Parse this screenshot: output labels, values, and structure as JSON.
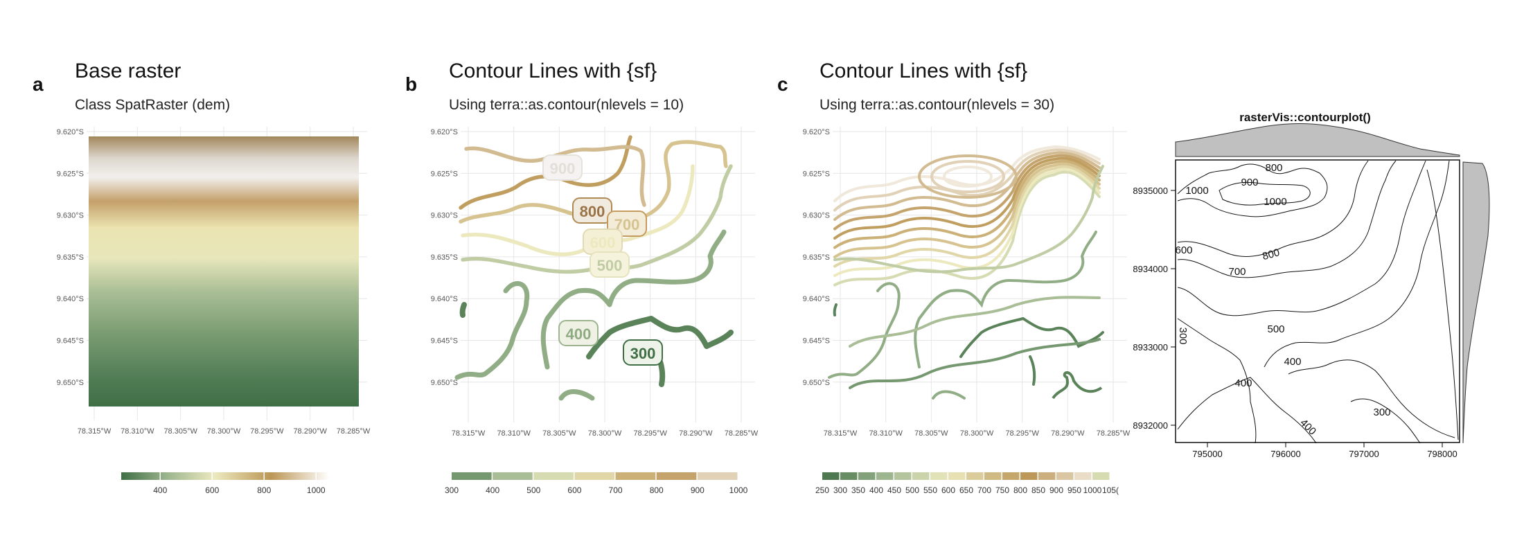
{
  "panels": {
    "a": {
      "tag": "a",
      "title": "Base raster",
      "subtitle": "Class SpatRaster (dem)"
    },
    "b": {
      "tag": "b",
      "title": "Contour Lines with {sf}",
      "subtitle": "Using terra::as.contour(nlevels = 10)"
    },
    "c": {
      "tag": "c",
      "title": "Contour Lines with {sf}",
      "subtitle": "Using terra::as.contour(nlevels = 30)"
    },
    "d": {
      "title": "rasterVis::contourplot()"
    }
  },
  "colors": {
    "palette": [
      "#3f6e45",
      "#9cb58e",
      "#ece9bf",
      "#bb9656",
      "#ffffff"
    ],
    "grid": "#e6e6e6",
    "marginal_fill": "#c0c0c0"
  },
  "chart_data": [
    {
      "type": "heatmap",
      "id": "base-raster",
      "title": "Base raster",
      "subtitle": "Class SpatRaster (dem)",
      "x_ticks": [
        "78.315°W",
        "78.310°W",
        "78.305°W",
        "78.300°W",
        "78.295°W",
        "78.290°W",
        "78.285°W"
      ],
      "y_ticks": [
        "9.620°S",
        "9.625°S",
        "9.630°S",
        "9.635°S",
        "9.640°S",
        "9.645°S",
        "9.650°S"
      ],
      "legend": {
        "min": 250,
        "max": 1050,
        "ticks": [
          400,
          600,
          800,
          1000
        ]
      }
    },
    {
      "type": "line",
      "id": "contours-10",
      "title": "Contour Lines with {sf}",
      "subtitle": "Using terra::as.contour(nlevels = 10)",
      "levels": [
        300,
        400,
        500,
        600,
        700,
        800,
        900
      ],
      "x_ticks": [
        "78.315°W",
        "78.310°W",
        "78.305°W",
        "78.300°W",
        "78.295°W",
        "78.290°W",
        "78.285°W"
      ],
      "y_ticks": [
        "9.620°S",
        "9.625°S",
        "9.630°S",
        "9.635°S",
        "9.640°S",
        "9.645°S",
        "9.650°S"
      ],
      "legend": {
        "breaks": [
          300,
          400,
          500,
          600,
          700,
          800,
          900,
          1000
        ]
      }
    },
    {
      "type": "line",
      "id": "contours-30",
      "title": "Contour Lines with {sf}",
      "subtitle": "Using terra::as.contour(nlevels = 30)",
      "x_ticks": [
        "78.315°W",
        "78.310°W",
        "78.305°W",
        "78.300°W",
        "78.295°W",
        "78.290°W",
        "78.285°W"
      ],
      "y_ticks": [
        "9.620°S",
        "9.625°S",
        "9.630°S",
        "9.635°S",
        "9.640°S",
        "9.645°S",
        "9.650°S"
      ],
      "legend": {
        "breaks": [
          "250",
          "300",
          "350",
          "400",
          "450",
          "500",
          "550",
          "600",
          "650",
          "700",
          "750",
          "800",
          "850",
          "900",
          "950",
          "1000",
          "105("
        ]
      }
    },
    {
      "type": "line",
      "id": "rastervis-contourplot",
      "title": "rasterVis::contourplot()",
      "x_ticks": [
        "795000",
        "796000",
        "797000",
        "798000"
      ],
      "y_ticks": [
        "8935000",
        "8934000",
        "8933000",
        "8932000"
      ],
      "contour_labels": [
        "1000",
        "900",
        "800",
        "1000",
        "600",
        "700",
        "800",
        "500",
        "300",
        "400",
        "400",
        "300",
        "400"
      ]
    }
  ]
}
